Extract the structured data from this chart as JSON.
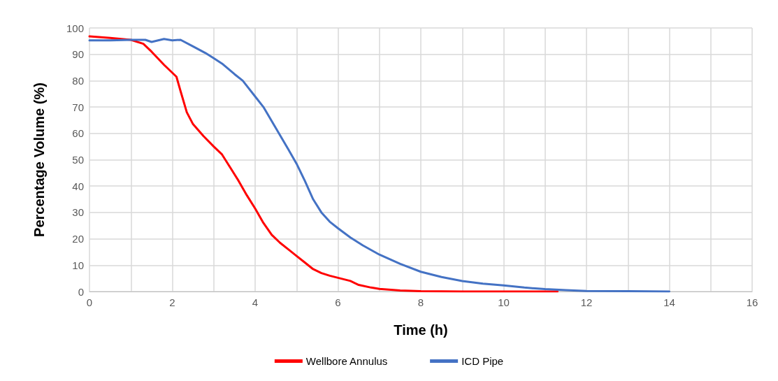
{
  "chart_data": {
    "type": "line",
    "xlabel": "Time (h)",
    "ylabel": "Percentage Volume (%)",
    "xlim": [
      0,
      16
    ],
    "xticks": [
      0,
      {
        "value": 1,
        "label": null
      },
      2,
      {
        "value": 3,
        "label": null
      },
      4,
      {
        "value": 5,
        "label": null
      },
      6,
      {
        "value": 7,
        "label": null
      },
      8,
      {
        "value": 9,
        "label": null
      },
      10,
      {
        "value": 11,
        "label": null
      },
      12,
      {
        "value": 13,
        "label": null
      },
      14,
      {
        "value": 15,
        "label": null
      },
      16
    ],
    "ylim": [
      0,
      100
    ],
    "yticks": [
      0,
      10,
      20,
      30,
      40,
      50,
      60,
      70,
      80,
      90,
      100
    ],
    "grid": true,
    "legend": "bottom",
    "marker": "none",
    "line_style": "solid",
    "series": [
      {
        "name": "Wellbore Annulus",
        "color": "#ff0000",
        "x": [
          0,
          0.5,
          1,
          1.3,
          1.5,
          1.8,
          2.1,
          2.2,
          2.35,
          2.5,
          2.75,
          3,
          3.2,
          3.4,
          3.6,
          3.8,
          4,
          4.2,
          4.4,
          4.6,
          4.8,
          5,
          5.2,
          5.4,
          5.6,
          5.8,
          6,
          6.3,
          6.5,
          6.8,
          7,
          7.5,
          8,
          9,
          11.3
        ],
        "values": [
          96.8,
          96.2,
          95.5,
          94,
          91,
          86,
          81.5,
          76,
          68,
          63.5,
          59,
          55,
          52,
          47,
          42,
          36.5,
          31.5,
          26,
          21.5,
          18.5,
          16,
          13.5,
          11,
          8.5,
          7,
          6,
          5.2,
          4,
          2.5,
          1.5,
          1,
          0.4,
          0.1,
          0,
          0
        ]
      },
      {
        "name": "ICD Pipe",
        "color": "#4472c4",
        "x": [
          0,
          0.5,
          1,
          1.35,
          1.5,
          1.8,
          2,
          2.2,
          2.5,
          2.8,
          3,
          3.2,
          3.5,
          3.7,
          4,
          4.2,
          4.5,
          4.8,
          5,
          5.2,
          5.4,
          5.6,
          5.8,
          6,
          6.3,
          6.6,
          7,
          7.5,
          8,
          8.5,
          9,
          9.5,
          10,
          10.5,
          11,
          11.5,
          12,
          13,
          14
        ],
        "values": [
          95.3,
          95.3,
          95.5,
          95.5,
          94.7,
          95.8,
          95.3,
          95.5,
          93,
          90.5,
          88.5,
          86.5,
          82.5,
          80,
          74,
          70,
          62,
          54,
          48.5,
          42,
          35,
          30,
          26.5,
          24,
          20.5,
          17.5,
          14,
          10.5,
          7.5,
          5.5,
          4,
          3,
          2.3,
          1.5,
          0.9,
          0.5,
          0.2,
          0.1,
          0
        ]
      }
    ]
  }
}
